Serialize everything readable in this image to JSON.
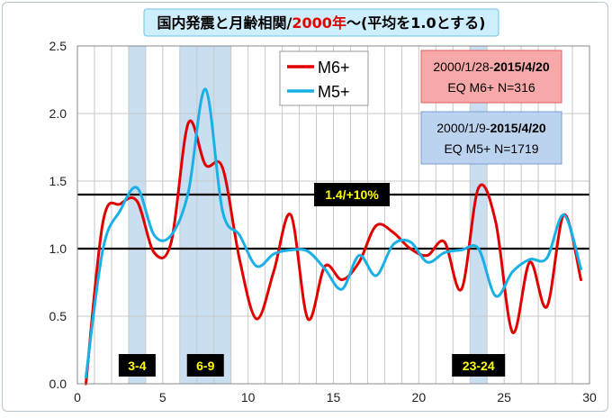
{
  "chart_data": {
    "type": "line",
    "title": {
      "prefix": "国内発震と月齢相関/",
      "highlight": "2000年",
      "suffix": "〜(平均を1.0とする)",
      "highlight_color": "#e00000"
    },
    "xlim": [
      0,
      30
    ],
    "ylim": [
      0,
      2.5
    ],
    "x_ticks": [
      "0",
      "5",
      "10",
      "15",
      "20",
      "25",
      "30"
    ],
    "y_ticks": [
      "0.0",
      "0.5",
      "1.0",
      "1.5",
      "2.0",
      "2.5"
    ],
    "grid": true,
    "legend_position": "top-center",
    "series": [
      {
        "name": "M6+",
        "color": "#e00000",
        "x": [
          0.5,
          1.5,
          2.5,
          3.5,
          4.5,
          5.5,
          6.5,
          7.5,
          8.5,
          9.5,
          10.5,
          11.5,
          12.5,
          13.5,
          14.5,
          15.5,
          16.5,
          17.5,
          18.5,
          19.5,
          20.5,
          21.5,
          22.5,
          23.5,
          24.5,
          25.5,
          26.5,
          27.5,
          28.5,
          29.5
        ],
        "values": [
          0.0,
          1.2,
          1.33,
          1.35,
          0.97,
          1.05,
          1.93,
          1.62,
          1.6,
          0.92,
          0.48,
          0.83,
          1.25,
          0.48,
          0.87,
          0.77,
          0.9,
          1.17,
          1.12,
          1.0,
          0.95,
          1.05,
          0.7,
          1.45,
          1.2,
          0.38,
          0.9,
          0.57,
          1.25,
          0.77
        ]
      },
      {
        "name": "M5+",
        "color": "#1ab0e6",
        "x": [
          0.5,
          1.5,
          2.5,
          3.5,
          4.5,
          5.5,
          6.5,
          7.5,
          8.5,
          9.5,
          10.5,
          11.5,
          12.5,
          13.5,
          14.5,
          15.5,
          16.5,
          17.5,
          18.5,
          19.5,
          20.5,
          21.5,
          22.5,
          23.5,
          24.5,
          25.5,
          26.5,
          27.5,
          28.5,
          29.5
        ],
        "values": [
          0.05,
          1.0,
          1.28,
          1.45,
          1.1,
          1.1,
          1.42,
          2.18,
          1.28,
          1.1,
          0.87,
          0.96,
          0.99,
          0.98,
          0.85,
          0.7,
          0.95,
          0.8,
          1.03,
          1.05,
          0.9,
          0.97,
          0.99,
          1.0,
          0.65,
          0.83,
          0.92,
          0.93,
          1.25,
          0.85
        ]
      }
    ],
    "reference_lines": [
      {
        "y": 1.4,
        "label": "1.4/+10%"
      },
      {
        "y": 1.0
      }
    ],
    "highlight_bands": [
      {
        "x0": 3.0,
        "x1": 4.0,
        "label": "3-4"
      },
      {
        "x0": 6.0,
        "x1": 9.0,
        "label": "6-9"
      },
      {
        "x0": 23.0,
        "x1": 24.0,
        "label": "23-24"
      }
    ],
    "info_boxes": [
      {
        "line1_normal": "2000/1/28-",
        "line1_bold": "2015/4/20",
        "line2": "EQ M6+  N=316",
        "bg": "#f7a8a8",
        "border": "#e06060"
      },
      {
        "line1_normal": "2000/1/9-",
        "line1_bold": "2015/4/20",
        "line2": "EQ M5+  N=1719",
        "bg": "#bcd3f0",
        "border": "#7a9fd0"
      }
    ],
    "colors": {
      "title_box": "#cdeefc",
      "title_border": "#6fc3e8",
      "band_fill": "#9ec3e6",
      "label_bg": "#000000",
      "label_text": "#ffff00"
    }
  }
}
